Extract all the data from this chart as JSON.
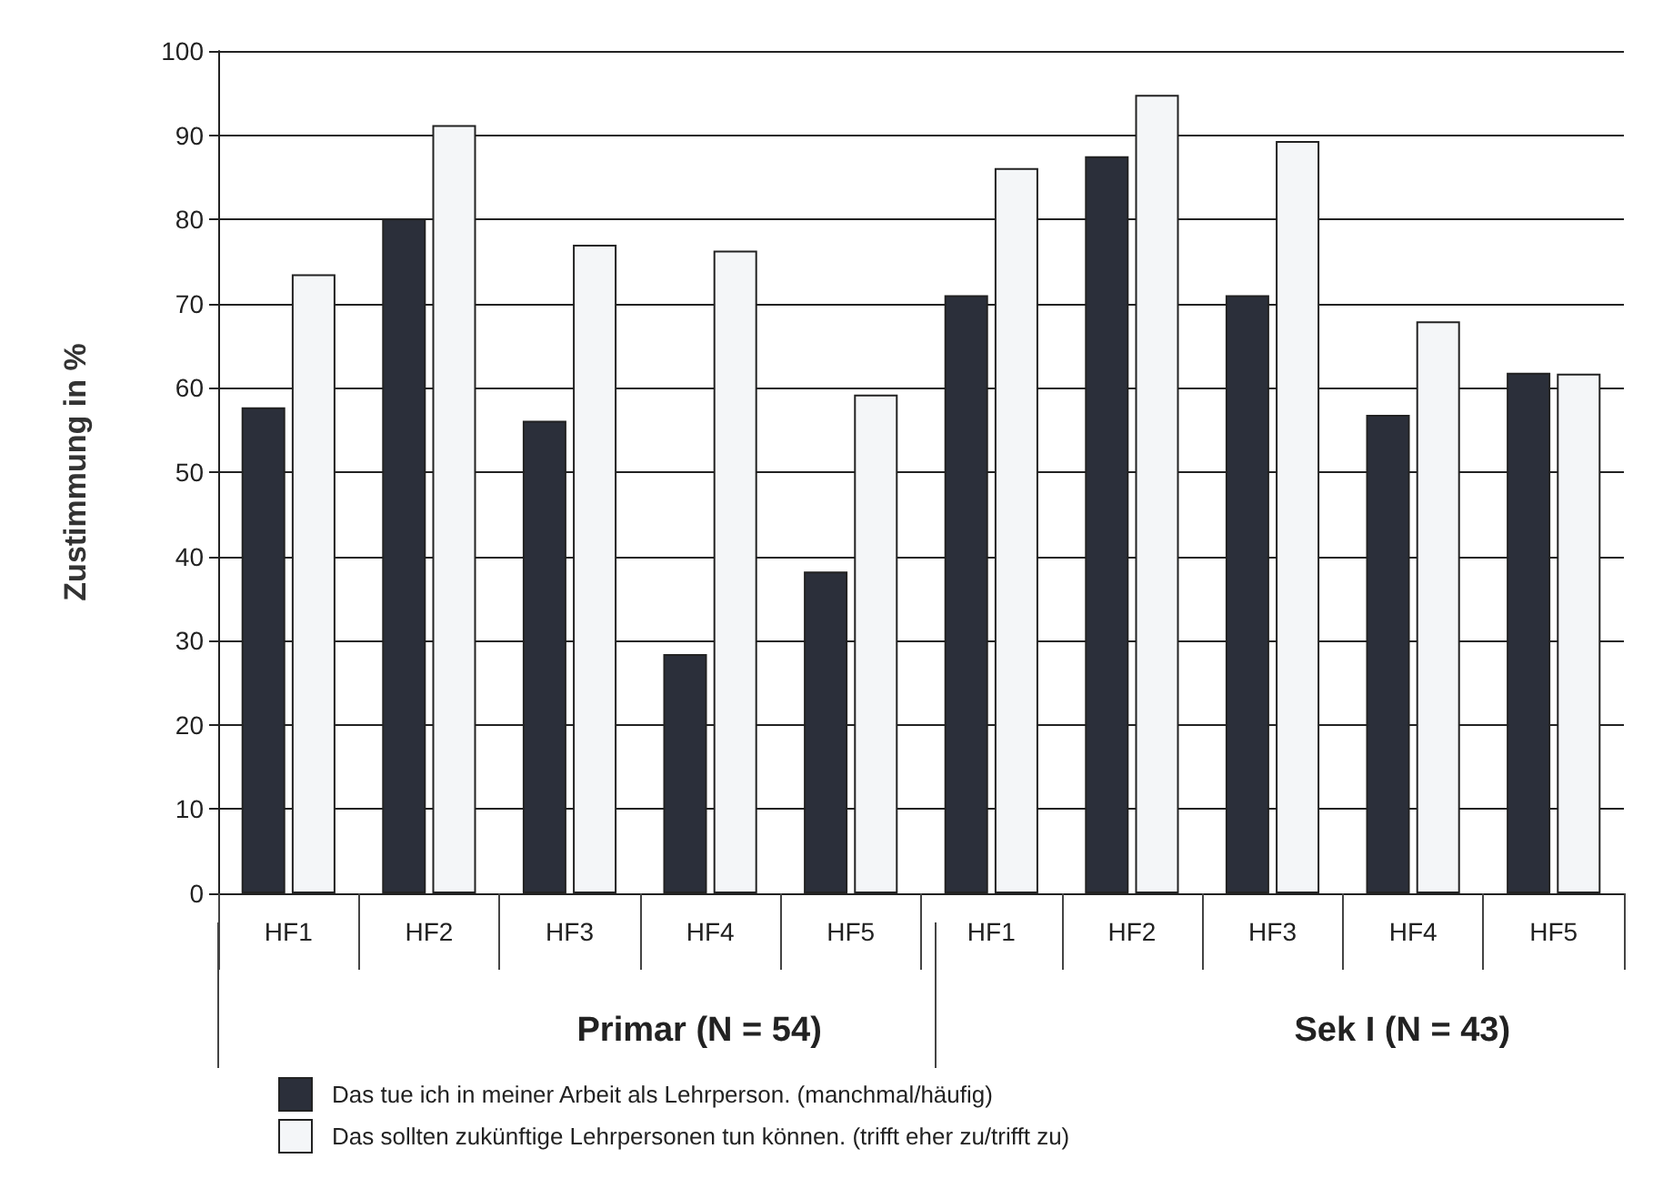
{
  "chart_data": {
    "type": "bar",
    "ylabel": "Zustimmung in %",
    "categories": [
      "HF1",
      "HF2",
      "HF3",
      "HF4",
      "HF5",
      "HF1",
      "HF2",
      "HF3",
      "HF4",
      "HF5"
    ],
    "series": [
      {
        "name": "Das tue ich in meiner Arbeit als Lehrperson. (manchmal/häufig)",
        "color": "#2b2f3a",
        "values": [
          57.7,
          80.1,
          56.1,
          28.4,
          38.2,
          71,
          87.5,
          71,
          56.8,
          61.8
        ]
      },
      {
        "name": "Das sollten zukünftige Lehrpersonen tun können. (trifft eher zu/trifft zu)",
        "color": "#f4f6f8",
        "values": [
          73.5,
          91.2,
          77,
          76.3,
          59.2,
          86.1,
          94.8,
          89.3,
          67.9,
          61.7
        ]
      }
    ],
    "annotations": [
      "Primar (N = 54)",
      "Sek I (N = 43)"
    ],
    "ylim": [
      0,
      100
    ],
    "yticks": [
      0,
      10,
      20,
      30,
      40,
      50,
      60,
      70,
      80,
      90,
      100
    ],
    "grid": "y",
    "legend": "bottom left"
  }
}
